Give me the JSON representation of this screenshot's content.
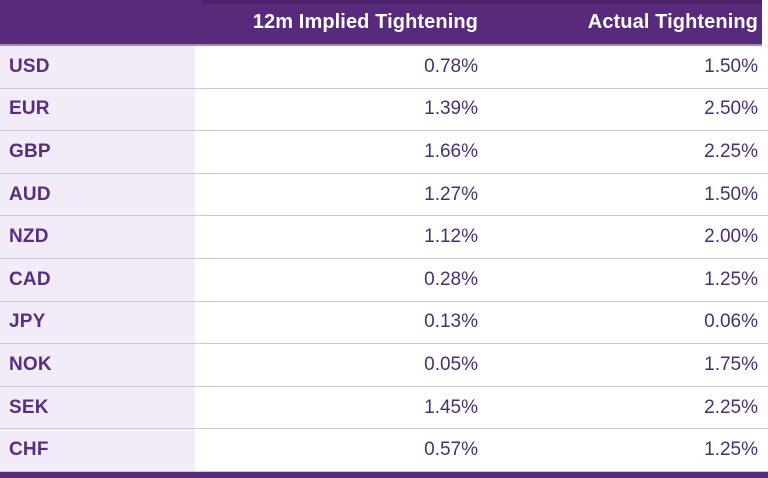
{
  "chart_data": {
    "type": "table",
    "columns": [
      "",
      "12m Implied Tightening",
      "Actual Tightening"
    ],
    "categories": [
      "USD",
      "EUR",
      "GBP",
      "AUD",
      "NZD",
      "CAD",
      "JPY",
      "NOK",
      "SEK",
      "CHF"
    ],
    "series": [
      {
        "name": "12m Implied Tightening",
        "unit": "%",
        "values": [
          0.78,
          1.39,
          1.66,
          1.27,
          1.12,
          0.28,
          0.13,
          0.05,
          1.45,
          0.57
        ]
      },
      {
        "name": "Actual Tightening",
        "unit": "%",
        "values": [
          1.5,
          2.5,
          2.25,
          1.5,
          2.0,
          1.25,
          0.06,
          1.75,
          2.25,
          1.25
        ]
      }
    ],
    "rows": [
      {
        "currency": "USD",
        "implied": "0.78%",
        "actual": "1.50%"
      },
      {
        "currency": "EUR",
        "implied": "1.39%",
        "actual": "2.50%"
      },
      {
        "currency": "GBP",
        "implied": "1.66%",
        "actual": "2.25%"
      },
      {
        "currency": "AUD",
        "implied": "1.27%",
        "actual": "1.50%"
      },
      {
        "currency": "NZD",
        "implied": "1.12%",
        "actual": "2.00%"
      },
      {
        "currency": "CAD",
        "implied": "0.28%",
        "actual": "1.25%"
      },
      {
        "currency": "JPY",
        "implied": "0.13%",
        "actual": "0.06%"
      },
      {
        "currency": "NOK",
        "implied": "0.05%",
        "actual": "1.75%"
      },
      {
        "currency": "SEK",
        "implied": "1.45%",
        "actual": "2.25%"
      },
      {
        "currency": "CHF",
        "implied": "0.57%",
        "actual": "1.25%"
      }
    ],
    "layout": {
      "header_background": "#572a7c",
      "header_text_color": "#ffffff",
      "currency_column_background": "#f2ebf8",
      "currency_text_color": "#5b2d80",
      "value_text_color": "#4c2f6e",
      "row_divider_color": "#cfc7d8",
      "header_divider_color": "#a28cba",
      "footer_bar_color": "#572a7c"
    }
  }
}
